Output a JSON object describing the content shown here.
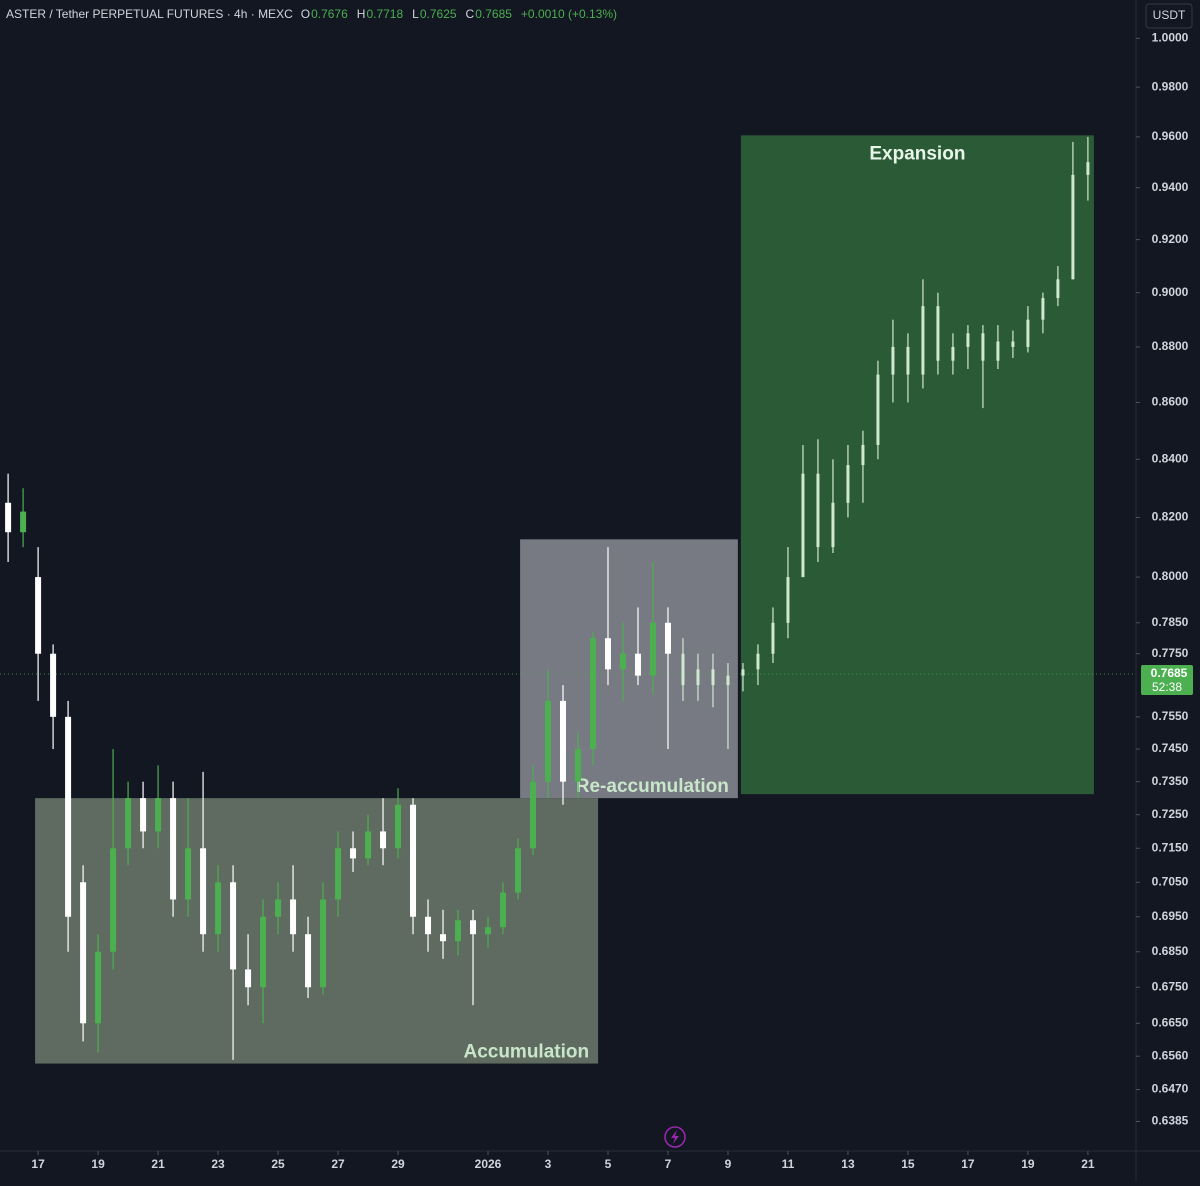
{
  "chart_data": {
    "type": "candlestick",
    "title": "ASTER / Tether PERPETUAL FUTURES · 4h · MEXC",
    "header_values": [
      {
        "label": "O",
        "value": 0.7676
      },
      {
        "label": "H",
        "value": 0.7718
      },
      {
        "label": "L",
        "value": 0.7625
      },
      {
        "label": "C",
        "value": 0.7685
      }
    ],
    "change": "+0.0010 (+0.13%)",
    "currency": "USDT",
    "last_price": {
      "value": 0.7685,
      "countdown": "52:38",
      "color": "#4caf50"
    },
    "log_scale": true,
    "ylim": [
      0.631,
      1.016
    ],
    "yticks": [
      {
        "value": 1.0,
        "label": "1.0000"
      },
      {
        "value": 0.98,
        "label": "0.9800"
      },
      {
        "value": 0.96,
        "label": "0.9600"
      },
      {
        "value": 0.94,
        "label": "0.9400"
      },
      {
        "value": 0.92,
        "label": "0.9200"
      },
      {
        "value": 0.9,
        "label": "0.9000"
      },
      {
        "value": 0.88,
        "label": "0.8800"
      },
      {
        "value": 0.86,
        "label": "0.8600"
      },
      {
        "value": 0.84,
        "label": "0.8400"
      },
      {
        "value": 0.82,
        "label": "0.8200"
      },
      {
        "value": 0.8,
        "label": "0.8000"
      },
      {
        "value": 0.785,
        "label": "0.7850"
      },
      {
        "value": 0.775,
        "label": "0.7750"
      },
      {
        "value": 0.755,
        "label": "0.7550"
      },
      {
        "value": 0.745,
        "label": "0.7450"
      },
      {
        "value": 0.735,
        "label": "0.7350"
      },
      {
        "value": 0.725,
        "label": "0.7250"
      },
      {
        "value": 0.715,
        "label": "0.7150"
      },
      {
        "value": 0.705,
        "label": "0.7050"
      },
      {
        "value": 0.695,
        "label": "0.6950"
      },
      {
        "value": 0.685,
        "label": "0.6850"
      },
      {
        "value": 0.675,
        "label": "0.6750"
      },
      {
        "value": 0.665,
        "label": "0.6650"
      },
      {
        "value": 0.656,
        "label": "0.6560"
      },
      {
        "value": 0.647,
        "label": "0.6470"
      },
      {
        "value": 0.6385,
        "label": "0.6385"
      }
    ],
    "xlim": [
      -1.27,
      36.57
    ],
    "xticks": [
      {
        "value": 0,
        "label": "17"
      },
      {
        "value": 2,
        "label": "19"
      },
      {
        "value": 4,
        "label": "21"
      },
      {
        "value": 6,
        "label": "23"
      },
      {
        "value": 8,
        "label": "25"
      },
      {
        "value": 10,
        "label": "27"
      },
      {
        "value": 12,
        "label": "29"
      },
      {
        "value": 15,
        "label": "2026"
      },
      {
        "value": 17,
        "label": "3"
      },
      {
        "value": 19,
        "label": "5"
      },
      {
        "value": 21,
        "label": "7"
      },
      {
        "value": 23,
        "label": "9"
      },
      {
        "value": 25,
        "label": "11"
      },
      {
        "value": 27,
        "label": "13"
      },
      {
        "value": 29,
        "label": "15"
      },
      {
        "value": 31,
        "label": "17"
      },
      {
        "value": 33,
        "label": "19"
      },
      {
        "value": 35,
        "label": "21"
      }
    ],
    "up_color": "#4caf50",
    "down_color": "#ffffff",
    "candles": {
      "x": [
        -1.0,
        -0.5,
        0,
        0.5,
        1.0,
        1.5,
        2.0,
        2.5,
        3.0,
        3.5,
        4.0,
        4.5,
        5.0,
        5.5,
        6.0,
        6.5,
        7.0,
        7.5,
        8.0,
        8.5,
        9.0,
        9.5,
        10.0,
        10.5,
        11.0,
        11.5,
        12.0,
        12.5,
        13.0,
        13.5,
        14.0,
        14.5,
        15.0,
        15.5,
        16.0,
        16.5,
        17.0,
        17.5,
        18.0,
        18.5,
        19.0,
        19.5,
        20.0,
        20.5,
        21.0
      ],
      "open": [
        0.825,
        0.815,
        0.8,
        0.775,
        0.755,
        0.705,
        0.665,
        0.685,
        0.715,
        0.73,
        0.72,
        0.73,
        0.7,
        0.715,
        0.69,
        0.705,
        0.68,
        0.675,
        0.695,
        0.7,
        0.69,
        0.675,
        0.7,
        0.715,
        0.712,
        0.72,
        0.715,
        0.728,
        0.695,
        0.69,
        0.688,
        0.694,
        0.69,
        0.692,
        0.702,
        0.715,
        0.735,
        0.76,
        0.735,
        0.745,
        0.78,
        0.77,
        0.775,
        0.768,
        0.785
      ],
      "high": [
        0.835,
        0.83,
        0.81,
        0.778,
        0.76,
        0.71,
        0.69,
        0.745,
        0.735,
        0.735,
        0.74,
        0.735,
        0.73,
        0.738,
        0.71,
        0.71,
        0.69,
        0.7,
        0.705,
        0.71,
        0.695,
        0.705,
        0.72,
        0.72,
        0.725,
        0.73,
        0.733,
        0.73,
        0.7,
        0.697,
        0.697,
        0.697,
        0.695,
        0.705,
        0.718,
        0.74,
        0.77,
        0.765,
        0.75,
        0.782,
        0.81,
        0.785,
        0.79,
        0.805,
        0.79
      ],
      "low": [
        0.805,
        0.81,
        0.76,
        0.745,
        0.685,
        0.66,
        0.657,
        0.68,
        0.71,
        0.715,
        0.715,
        0.695,
        0.695,
        0.685,
        0.685,
        0.655,
        0.67,
        0.665,
        0.69,
        0.685,
        0.672,
        0.673,
        0.695,
        0.708,
        0.71,
        0.71,
        0.712,
        0.69,
        0.685,
        0.683,
        0.684,
        0.67,
        0.686,
        0.69,
        0.7,
        0.713,
        0.73,
        0.728,
        0.73,
        0.74,
        0.765,
        0.76,
        0.765,
        0.762,
        0.745
      ],
      "close": [
        0.815,
        0.822,
        0.775,
        0.755,
        0.695,
        0.665,
        0.685,
        0.715,
        0.73,
        0.72,
        0.73,
        0.7,
        0.715,
        0.69,
        0.705,
        0.68,
        0.675,
        0.695,
        0.7,
        0.69,
        0.675,
        0.7,
        0.715,
        0.712,
        0.72,
        0.715,
        0.728,
        0.695,
        0.69,
        0.688,
        0.694,
        0.69,
        0.692,
        0.702,
        0.715,
        0.735,
        0.76,
        0.735,
        0.745,
        0.78,
        0.77,
        0.775,
        0.768,
        0.785,
        0.775
      ]
    },
    "projection": {
      "color": "#cfe8cf",
      "x": [
        21.5,
        22.0,
        22.5,
        23.0,
        23.5,
        24.0,
        24.5,
        25.0,
        25.5,
        26.0,
        26.5,
        27.0,
        27.5,
        28.0,
        28.5,
        29.0,
        29.5,
        30.0,
        30.5,
        31.0,
        31.5,
        32.0,
        32.5,
        33.0,
        33.5,
        34.0,
        34.5,
        35.0
      ],
      "open": [
        0.775,
        0.765,
        0.77,
        0.765,
        0.768,
        0.77,
        0.775,
        0.785,
        0.8,
        0.835,
        0.81,
        0.825,
        0.838,
        0.845,
        0.87,
        0.88,
        0.87,
        0.895,
        0.875,
        0.88,
        0.885,
        0.875,
        0.882,
        0.88,
        0.89,
        0.898,
        0.905,
        0.945
      ],
      "high": [
        0.78,
        0.775,
        0.775,
        0.772,
        0.772,
        0.778,
        0.79,
        0.81,
        0.845,
        0.847,
        0.84,
        0.845,
        0.85,
        0.875,
        0.89,
        0.885,
        0.905,
        0.9,
        0.885,
        0.888,
        0.888,
        0.888,
        0.886,
        0.895,
        0.9,
        0.91,
        0.958,
        0.96
      ],
      "low": [
        0.76,
        0.76,
        0.758,
        0.745,
        0.763,
        0.765,
        0.772,
        0.78,
        0.8,
        0.805,
        0.808,
        0.82,
        0.825,
        0.84,
        0.86,
        0.86,
        0.865,
        0.87,
        0.87,
        0.872,
        0.858,
        0.872,
        0.876,
        0.878,
        0.885,
        0.895,
        0.905,
        0.935
      ],
      "close": [
        0.765,
        0.77,
        0.765,
        0.768,
        0.77,
        0.775,
        0.785,
        0.8,
        0.835,
        0.81,
        0.825,
        0.838,
        0.845,
        0.87,
        0.88,
        0.87,
        0.895,
        0.875,
        0.88,
        0.885,
        0.875,
        0.882,
        0.88,
        0.89,
        0.898,
        0.905,
        0.945,
        0.95
      ]
    },
    "zones": [
      {
        "label": "Accumulation",
        "x": [
          -0.1,
          18.67
        ],
        "y": [
          0.654,
          0.73
        ],
        "color": "#5f6b60",
        "label_color": "#c8e6c9",
        "label_corner": "bottom-right"
      },
      {
        "label": "Re-accumulation",
        "x": [
          16.07,
          23.33
        ],
        "y": [
          0.73,
          0.8126
        ],
        "color": "#777a82",
        "label_color": "#c8e6c9",
        "label_corner": "bottom-right"
      },
      {
        "label": "Expansion",
        "x": [
          23.43,
          35.2
        ],
        "y": [
          0.7312,
          0.9606
        ],
        "color": "#2b5a37",
        "label_color": "#e8f5e9",
        "label_corner": "top-center"
      }
    ]
  }
}
